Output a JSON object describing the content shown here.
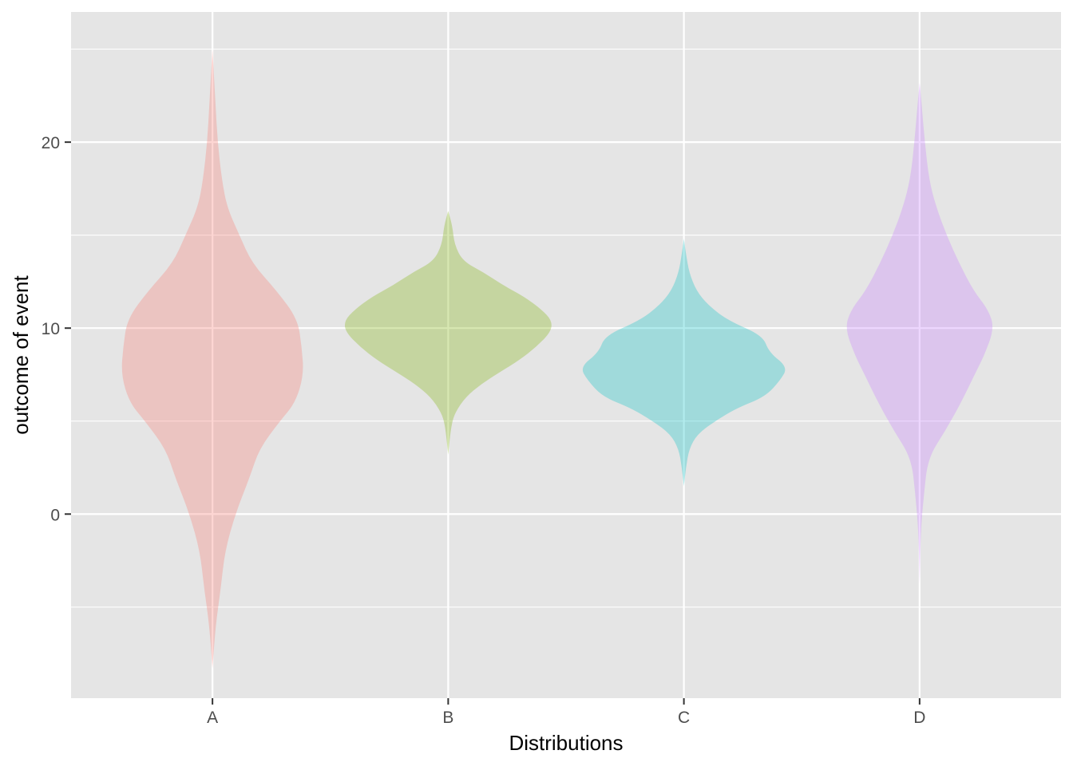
{
  "chart_data": {
    "type": "violin",
    "title": "",
    "xlabel": "Distributions",
    "ylabel": "outcome of event",
    "categories": [
      "A",
      "B",
      "C",
      "D"
    ],
    "ylim": [
      -9.9,
      27.0
    ],
    "y_ticks": [
      0,
      10,
      20
    ],
    "y_minor_ticks": [
      -5,
      5,
      15,
      25
    ],
    "grid": true,
    "legend": "none",
    "panel_background": "#e5e5e5",
    "grid_color": "#ffffff",
    "fill_alpha": 0.3,
    "colors": [
      "#F8766D",
      "#7CAE00",
      "#00BFC4",
      "#C77CFF"
    ],
    "violins": [
      {
        "category": "A",
        "y_min": -8.3,
        "y_max": 25.0,
        "profile": [
          [
            -8.3,
            0.0
          ],
          [
            -6.0,
            0.03
          ],
          [
            -4.0,
            0.08
          ],
          [
            -2.0,
            0.12
          ],
          [
            0.0,
            0.22
          ],
          [
            2.0,
            0.36
          ],
          [
            3.5,
            0.45
          ],
          [
            5.0,
            0.65
          ],
          [
            6.0,
            0.8
          ],
          [
            7.5,
            0.88
          ],
          [
            9.0,
            0.86
          ],
          [
            10.5,
            0.82
          ],
          [
            12.0,
            0.62
          ],
          [
            13.5,
            0.38
          ],
          [
            15.0,
            0.26
          ],
          [
            16.5,
            0.14
          ],
          [
            18.0,
            0.09
          ],
          [
            20.0,
            0.05
          ],
          [
            22.0,
            0.03
          ],
          [
            24.0,
            0.01
          ],
          [
            25.0,
            0.0
          ]
        ]
      },
      {
        "category": "B",
        "y_min": 3.2,
        "y_max": 16.3,
        "profile": [
          [
            3.2,
            0.0
          ],
          [
            4.8,
            0.03
          ],
          [
            5.5,
            0.07
          ],
          [
            6.3,
            0.17
          ],
          [
            7.0,
            0.32
          ],
          [
            7.6,
            0.49
          ],
          [
            8.3,
            0.69
          ],
          [
            9.0,
            0.85
          ],
          [
            9.8,
            0.99
          ],
          [
            10.4,
            1.0
          ],
          [
            11.0,
            0.9
          ],
          [
            11.7,
            0.73
          ],
          [
            12.3,
            0.53
          ],
          [
            13.0,
            0.34
          ],
          [
            13.6,
            0.14
          ],
          [
            14.5,
            0.06
          ],
          [
            15.5,
            0.04
          ],
          [
            16.3,
            0.0
          ]
        ]
      },
      {
        "category": "C",
        "y_min": 1.5,
        "y_max": 14.8,
        "profile": [
          [
            1.5,
            0.0
          ],
          [
            2.5,
            0.02
          ],
          [
            3.5,
            0.05
          ],
          [
            4.3,
            0.13
          ],
          [
            5.0,
            0.3
          ],
          [
            5.7,
            0.51
          ],
          [
            6.3,
            0.78
          ],
          [
            7.2,
            0.93
          ],
          [
            7.9,
            1.0
          ],
          [
            8.7,
            0.82
          ],
          [
            9.6,
            0.76
          ],
          [
            10.4,
            0.43
          ],
          [
            11.2,
            0.24
          ],
          [
            12.0,
            0.12
          ],
          [
            13.0,
            0.05
          ],
          [
            14.0,
            0.02
          ],
          [
            14.8,
            0.0
          ]
        ]
      },
      {
        "category": "D",
        "y_min": -3.8,
        "y_max": 23.2,
        "profile": [
          [
            -3.8,
            0.0
          ],
          [
            -1.0,
            0.01
          ],
          [
            1.0,
            0.04
          ],
          [
            3.0,
            0.08
          ],
          [
            4.5,
            0.25
          ],
          [
            6.0,
            0.4
          ],
          [
            7.5,
            0.53
          ],
          [
            8.5,
            0.62
          ],
          [
            10.0,
            0.72
          ],
          [
            11.0,
            0.66
          ],
          [
            12.0,
            0.52
          ],
          [
            13.5,
            0.38
          ],
          [
            15.0,
            0.26
          ],
          [
            16.5,
            0.16
          ],
          [
            18.0,
            0.09
          ],
          [
            20.0,
            0.05
          ],
          [
            22.0,
            0.02
          ],
          [
            23.2,
            0.0
          ]
        ]
      }
    ]
  }
}
